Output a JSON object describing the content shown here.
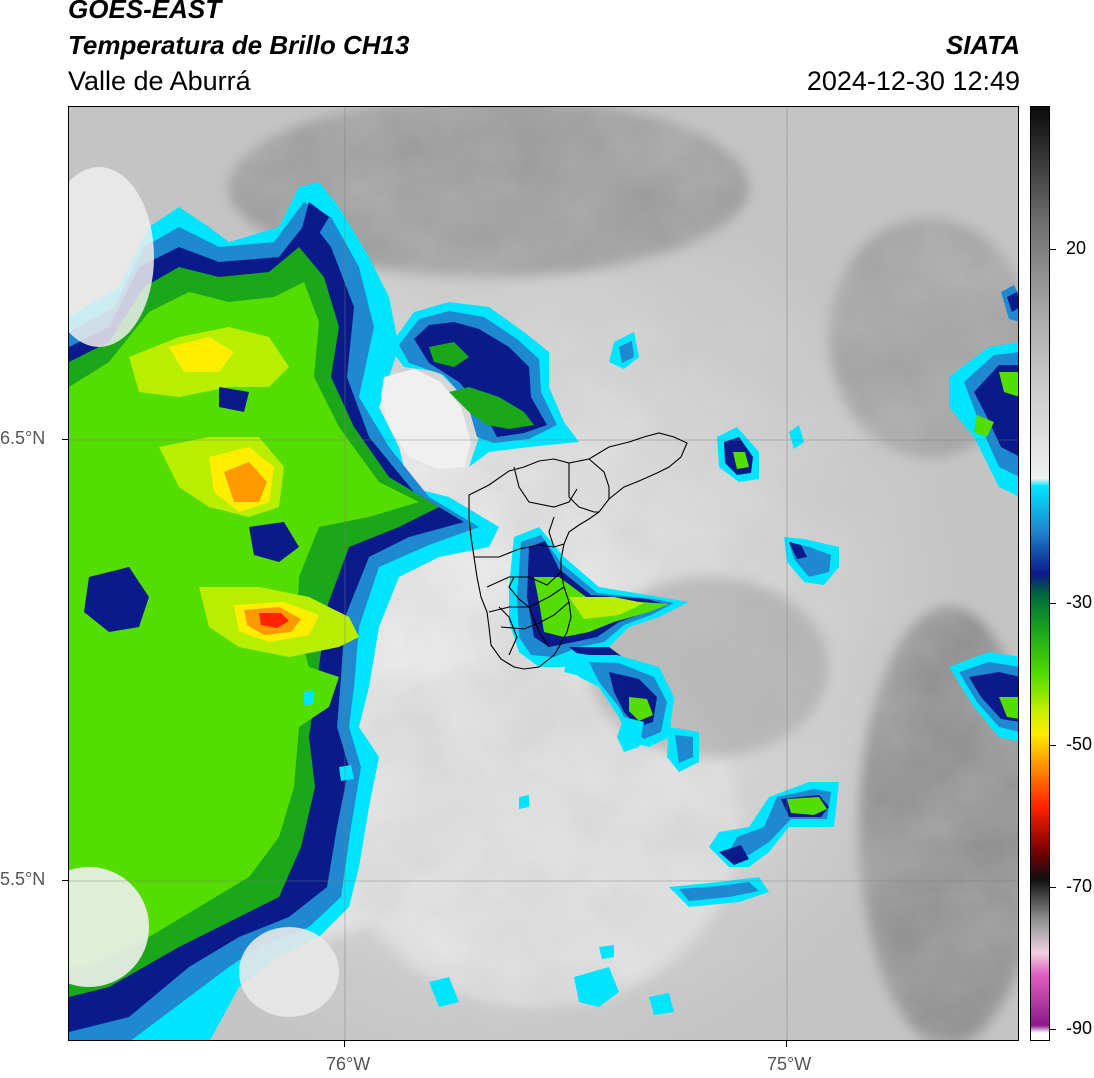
{
  "header": {
    "satellite": "GOES-EAST",
    "product": "Temperatura de Brillo CH13",
    "region": "Valle de Aburrá",
    "source": "SIATA",
    "datetime": "2024-12-30 12:49"
  },
  "axes": {
    "lat_labels": [
      "6.5°N",
      "5.5°N"
    ],
    "lon_labels": [
      "76°W",
      "75°W"
    ]
  },
  "colorbar": {
    "ticks": [
      "20",
      "-30",
      "-50",
      "-70",
      "-90"
    ],
    "range": [
      -92,
      36
    ],
    "stops": [
      {
        "v": 36,
        "c": "#0a0a0a"
      },
      {
        "v": 20,
        "c": "#707070"
      },
      {
        "v": 5,
        "c": "#b4b4b4"
      },
      {
        "v": -15,
        "c": "#f0f0f0"
      },
      {
        "v": -16,
        "c": "#00e5ff"
      },
      {
        "v": -22,
        "c": "#1e88d0"
      },
      {
        "v": -28,
        "c": "#0a1a8a"
      },
      {
        "v": -31,
        "c": "#006a3a"
      },
      {
        "v": -36,
        "c": "#1aa81a"
      },
      {
        "v": -42,
        "c": "#55dd00"
      },
      {
        "v": -47,
        "c": "#c8f000"
      },
      {
        "v": -50,
        "c": "#ffee00"
      },
      {
        "v": -54,
        "c": "#ff9900"
      },
      {
        "v": -60,
        "c": "#ff2200"
      },
      {
        "v": -66,
        "c": "#7a0000"
      },
      {
        "v": -70,
        "c": "#101010"
      },
      {
        "v": -76,
        "c": "#9a9a9a"
      },
      {
        "v": -80,
        "c": "#f0d0e0"
      },
      {
        "v": -83,
        "c": "#e060c0"
      },
      {
        "v": -90,
        "c": "#8a1a8a"
      },
      {
        "v": -91,
        "c": "#ffffff"
      }
    ]
  }
}
